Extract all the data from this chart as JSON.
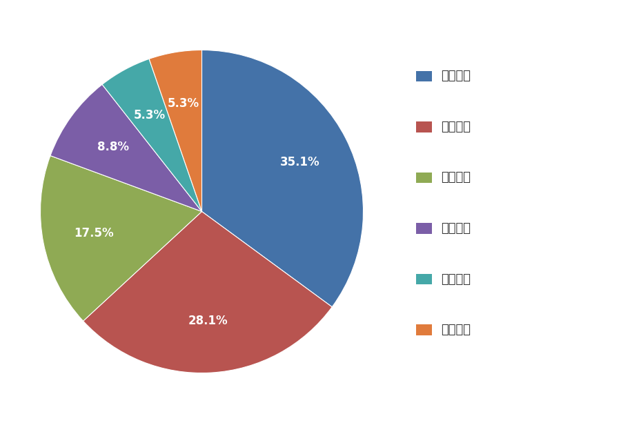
{
  "labels": [
    "华东地区",
    "华中地区",
    "华南地区",
    "华北地区",
    "东北地区",
    "西北地区"
  ],
  "values": [
    35.1,
    28.1,
    17.5,
    8.8,
    5.3,
    5.3
  ],
  "colors": [
    "#4472a8",
    "#b85450",
    "#8faa54",
    "#7b5ea7",
    "#45a8a8",
    "#e07b3c"
  ],
  "text_color": "#ffffff",
  "background_color": "#ffffff",
  "figsize": [
    9.0,
    6.13
  ],
  "dpi": 100,
  "startangle": 90,
  "label_fontsize": 12,
  "legend_fontsize": 13,
  "pct_distance": 0.68
}
